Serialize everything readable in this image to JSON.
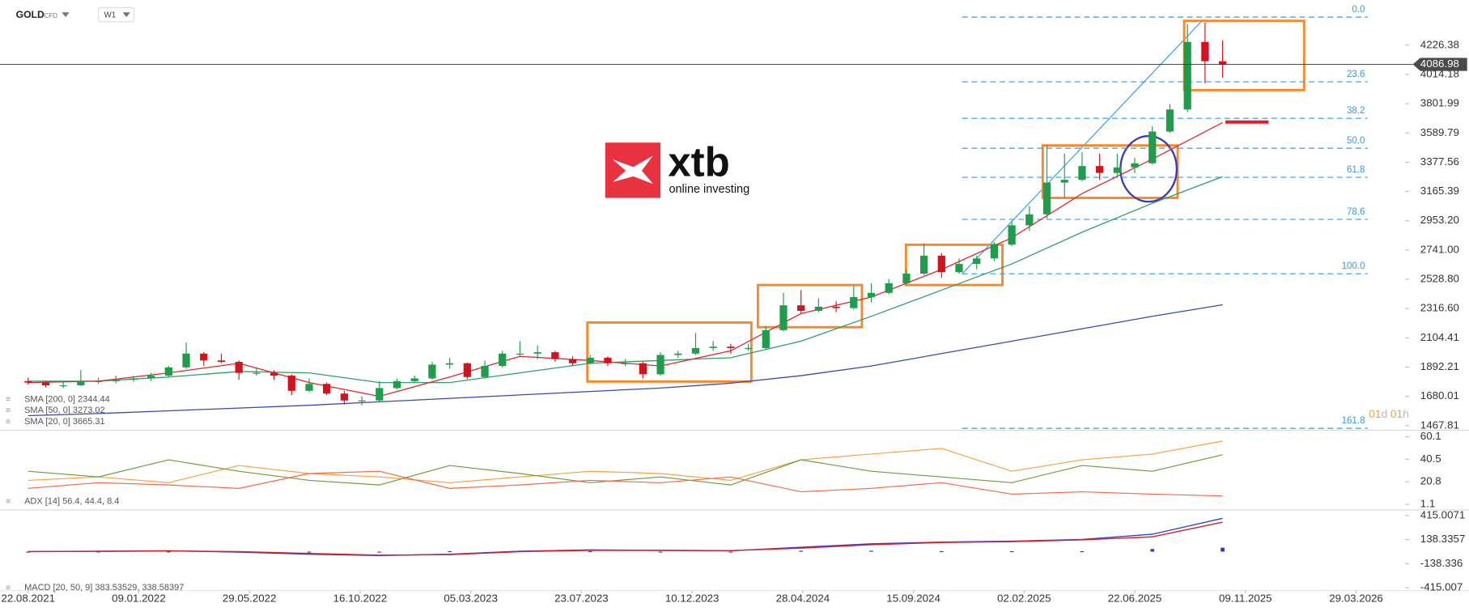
{
  "header": {
    "symbol": "GOLD",
    "instrument": "CFD",
    "timeframe": "W1"
  },
  "logo": {
    "brand": "xtb",
    "tagline": "online investing"
  },
  "countdown": {
    "days": "01",
    "day_unit": "d",
    "hours": "01",
    "hour_unit": "h"
  },
  "chart_data": [
    {
      "type": "candlestick",
      "x": [
        0,
        1,
        2,
        3,
        4,
        5,
        6,
        7,
        8,
        9,
        10,
        11,
        12,
        13,
        14,
        15,
        16,
        17,
        18,
        19,
        20,
        21,
        22,
        23,
        24,
        25,
        26,
        27,
        28,
        29,
        30,
        31,
        32,
        33,
        34,
        35,
        36,
        37,
        38,
        39,
        40,
        41,
        42,
        43,
        44,
        45,
        46,
        47,
        48,
        49,
        50,
        51,
        52,
        53,
        54,
        55,
        56,
        57,
        58,
        59,
        60,
        61,
        62,
        63,
        64,
        65,
        66,
        67,
        68
      ],
      "ohlc": [
        [
          1790,
          1815,
          1765,
          1780
        ],
        [
          1780,
          1790,
          1745,
          1760
        ],
        [
          1760,
          1785,
          1740,
          1760
        ],
        [
          1760,
          1870,
          1755,
          1790
        ],
        [
          1790,
          1815,
          1770,
          1790
        ],
        [
          1790,
          1830,
          1775,
          1800
        ],
        [
          1800,
          1830,
          1785,
          1810
        ],
        [
          1810,
          1850,
          1790,
          1830
        ],
        [
          1830,
          1900,
          1820,
          1890
        ],
        [
          1890,
          2070,
          1880,
          1990
        ],
        [
          1990,
          2000,
          1900,
          1940
        ],
        [
          1940,
          1990,
          1920,
          1930
        ],
        [
          1930,
          1940,
          1800,
          1850
        ],
        [
          1850,
          1880,
          1830,
          1850
        ],
        [
          1850,
          1870,
          1800,
          1830
        ],
        [
          1830,
          1840,
          1690,
          1720
        ],
        [
          1720,
          1810,
          1710,
          1770
        ],
        [
          1770,
          1780,
          1690,
          1700
        ],
        [
          1700,
          1720,
          1620,
          1650
        ],
        [
          1650,
          1680,
          1615,
          1650
        ],
        [
          1650,
          1790,
          1640,
          1740
        ],
        [
          1740,
          1810,
          1730,
          1790
        ],
        [
          1790,
          1830,
          1780,
          1810
        ],
        [
          1810,
          1930,
          1800,
          1910
        ],
        [
          1910,
          1960,
          1880,
          1920
        ],
        [
          1920,
          1925,
          1805,
          1820
        ],
        [
          1820,
          1940,
          1810,
          1900
        ],
        [
          1900,
          2010,
          1890,
          1990
        ],
        [
          1990,
          2080,
          1970,
          1990
        ],
        [
          1990,
          2050,
          1950,
          2000
        ],
        [
          2000,
          2010,
          1930,
          1950
        ],
        [
          1950,
          1970,
          1900,
          1920
        ],
        [
          1920,
          1980,
          1910,
          1960
        ],
        [
          1960,
          1970,
          1900,
          1920
        ],
        [
          1920,
          1950,
          1900,
          1920
        ],
        [
          1920,
          1930,
          1810,
          1840
        ],
        [
          1840,
          2000,
          1830,
          1980
        ],
        [
          1980,
          2010,
          1960,
          1990
        ],
        [
          1990,
          2140,
          1980,
          2030
        ],
        [
          2030,
          2080,
          2010,
          2040
        ],
        [
          2040,
          2060,
          1990,
          2030
        ],
        [
          2030,
          2060,
          2010,
          2030
        ],
        [
          2030,
          2190,
          2020,
          2160
        ],
        [
          2160,
          2430,
          2150,
          2340
        ],
        [
          2340,
          2450,
          2280,
          2300
        ],
        [
          2300,
          2390,
          2290,
          2330
        ],
        [
          2330,
          2370,
          2290,
          2320
        ],
        [
          2320,
          2480,
          2310,
          2400
        ],
        [
          2400,
          2500,
          2360,
          2430
        ],
        [
          2430,
          2530,
          2420,
          2500
        ],
        [
          2500,
          2600,
          2490,
          2570
        ],
        [
          2570,
          2790,
          2560,
          2700
        ],
        [
          2700,
          2720,
          2540,
          2580
        ],
        [
          2580,
          2680,
          2570,
          2640
        ],
        [
          2640,
          2700,
          2600,
          2680
        ],
        [
          2680,
          2800,
          2660,
          2780
        ],
        [
          2780,
          2950,
          2770,
          2920
        ],
        [
          2920,
          3060,
          2880,
          3000
        ],
        [
          3000,
          3500,
          2970,
          3230
        ],
        [
          3230,
          3440,
          3120,
          3250
        ],
        [
          3250,
          3450,
          3240,
          3350
        ],
        [
          3350,
          3440,
          3250,
          3300
        ],
        [
          3300,
          3440,
          3270,
          3340
        ],
        [
          3340,
          3410,
          3300,
          3370
        ],
        [
          3370,
          3640,
          3360,
          3600
        ],
        [
          3600,
          3800,
          3590,
          3760
        ],
        [
          3760,
          4380,
          3740,
          4250
        ],
        [
          4250,
          4390,
          3950,
          4110
        ],
        [
          4110,
          4260,
          3990,
          4087
        ]
      ],
      "up_color": "#1f9d4c",
      "down_color": "#d3131d",
      "xlim": [
        -1.6,
        78.4
      ],
      "ylim": [
        1440.6,
        4552.5
      ],
      "yticks": [
        4226.38,
        4014.18,
        3801.99,
        3589.79,
        3377.56,
        3165.39,
        {
          "value": 2953.2,
          "label": "2953.20"
        },
        {
          "value": 2741,
          "label": "2741.00"
        },
        {
          "value": 2528.8,
          "label": "2528.80"
        },
        {
          "value": 2316.6,
          "label": "2316.60"
        },
        2104.41,
        1892.21,
        1680.01,
        1467.81
      ],
      "xticks": [
        {
          "value": 0,
          "label": "22.08.2021"
        },
        {
          "value": 6.3,
          "label": "09.01.2022"
        },
        {
          "value": 12.6,
          "label": "29.05.2022"
        },
        {
          "value": 18.9,
          "label": "16.10.2022"
        },
        {
          "value": 25.2,
          "label": "05.03.2023"
        },
        {
          "value": 31.5,
          "label": "23.07.2023"
        },
        {
          "value": 37.8,
          "label": "10.12.2023"
        },
        {
          "value": 44.1,
          "label": "28.04.2024"
        },
        {
          "value": 50.4,
          "label": "15.09.2024"
        },
        {
          "value": 56.7,
          "label": "02.02.2025"
        },
        {
          "value": 63,
          "label": "22.06.2025"
        },
        {
          "value": 69.3,
          "label": "09.11.2025"
        },
        {
          "value": 75.6,
          "label": "29.03.2026"
        }
      ],
      "last_price": 4086.98,
      "fib_color": "#2a9df4",
      "fib_levels": [
        {
          "label": "0.0",
          "value": 4430
        },
        {
          "label": "23.6",
          "value": 3961
        },
        {
          "label": "38.2",
          "value": 3696
        },
        {
          "label": "50.0",
          "value": 3479
        },
        {
          "label": "61.8",
          "value": 3268
        },
        {
          "label": "78.6",
          "value": 2963
        },
        {
          "label": "100.0",
          "value": 2569
        },
        {
          "label": "161.8",
          "value": 1448
        }
      ],
      "ma_x": [
        0,
        4,
        8,
        12,
        16,
        20,
        24,
        28,
        32,
        36,
        40,
        44,
        48,
        52,
        56,
        60,
        64,
        68
      ],
      "moving_averages": [
        {
          "label": "SMA [200, 0] 2344.44",
          "color": "#3b4aa8",
          "values": [
            1540,
            1555,
            1575,
            1595,
            1615,
            1640,
            1665,
            1690,
            1715,
            1740,
            1775,
            1830,
            1900,
            1990,
            2080,
            2170,
            2260,
            2344
          ]
        },
        {
          "label": "SMA [50, 0] 3273.02",
          "color": "#2f9e6a",
          "values": [
            1790,
            1790,
            1820,
            1860,
            1850,
            1780,
            1780,
            1850,
            1920,
            1940,
            1960,
            2080,
            2260,
            2450,
            2640,
            2870,
            3080,
            3273
          ]
        },
        {
          "label": "SMA [20, 0] 3665.31",
          "color": "#e0262e",
          "values": [
            1780,
            1790,
            1850,
            1920,
            1780,
            1680,
            1820,
            1970,
            1940,
            1900,
            2010,
            2280,
            2400,
            2600,
            2830,
            3150,
            3400,
            3665
          ]
        }
      ]
    },
    {
      "type": "line",
      "legend": "ADX [14] 56.4, 44.4, 8.4",
      "x": [
        0,
        4,
        8,
        12,
        16,
        20,
        24,
        28,
        32,
        36,
        40,
        44,
        48,
        52,
        56,
        60,
        64,
        68
      ],
      "xlim": [
        -1.6,
        78.4
      ],
      "ylim": [
        -3,
        65
      ],
      "yticks": [
        60.1,
        40.5,
        20.8,
        1.1
      ],
      "series": [
        {
          "color": "#f5a142",
          "values": [
            22,
            25,
            20,
            35,
            28,
            25,
            20,
            25,
            30,
            28,
            22,
            40,
            45,
            50,
            30,
            40,
            45,
            56.4
          ]
        },
        {
          "color": "#6e9c3c",
          "values": [
            30,
            25,
            40,
            30,
            22,
            18,
            35,
            28,
            20,
            25,
            18,
            40,
            30,
            25,
            20,
            35,
            30,
            44.4
          ]
        },
        {
          "color": "#f06a4a",
          "values": [
            15,
            20,
            18,
            15,
            28,
            30,
            15,
            18,
            22,
            20,
            25,
            12,
            15,
            20,
            10,
            12,
            10,
            8.4
          ]
        }
      ]
    },
    {
      "type": "macd",
      "legend": "MACD [20, 50, 9] 383.53529, 338.58397",
      "x": [
        0,
        4,
        8,
        12,
        16,
        20,
        24,
        28,
        32,
        36,
        40,
        44,
        48,
        52,
        56,
        60,
        64,
        68
      ],
      "xlim": [
        -1.6,
        78.4
      ],
      "ylim": [
        -447,
        469
      ],
      "yticks": [
        415.0071,
        138.3357,
        -138.336,
        -415.007
      ],
      "series": [
        {
          "color": "#3340c0",
          "values": [
            0,
            5,
            10,
            -5,
            -30,
            -45,
            -30,
            5,
            20,
            15,
            10,
            50,
            90,
            110,
            120,
            140,
            200,
            383.5
          ]
        },
        {
          "color": "#d81e28",
          "values": [
            0,
            3,
            8,
            0,
            -20,
            -40,
            -35,
            0,
            15,
            15,
            12,
            40,
            80,
            105,
            115,
            135,
            170,
            338.6
          ]
        }
      ],
      "histogram": {
        "up_color": "#2b3bb0",
        "down_color": "#c8202a",
        "values": [
          0,
          2,
          2,
          -5,
          -10,
          -5,
          5,
          5,
          5,
          0,
          -2,
          10,
          10,
          5,
          5,
          5,
          30,
          45
        ]
      }
    }
  ]
}
